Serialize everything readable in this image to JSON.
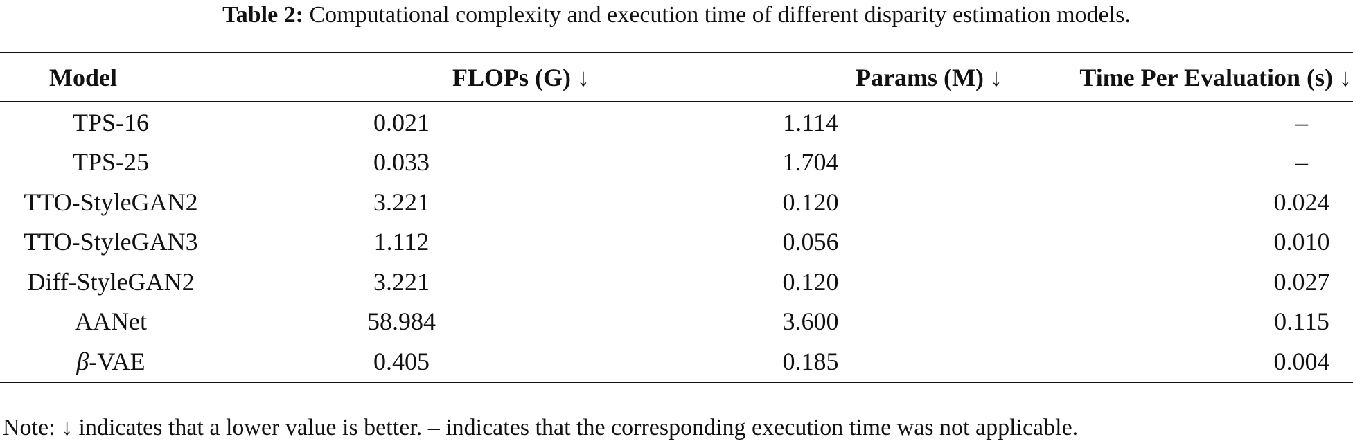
{
  "caption": {
    "label": "Table 2:",
    "text": "Computational complexity and execution time of different disparity estimation models."
  },
  "table": {
    "headers": {
      "model": "Model",
      "flops": "FLOPs (G) ↓",
      "params": "Params (M) ↓",
      "time": "Time Per Evaluation (s) ↓"
    },
    "rows": [
      {
        "model": "TPS-16",
        "flops": "0.021",
        "params": "1.114",
        "time": "–"
      },
      {
        "model": "TPS-25",
        "flops": "0.033",
        "params": "1.704",
        "time": "–"
      },
      {
        "model": "TTO-StyleGAN2",
        "flops": "3.221",
        "params": "0.120",
        "time": "0.024"
      },
      {
        "model": "TTO-StyleGAN3",
        "flops": "1.112",
        "params": "0.056",
        "time": "0.010"
      },
      {
        "model": "Diff-StyleGAN2",
        "flops": "3.221",
        "params": "0.120",
        "time": "0.027"
      },
      {
        "model": "AANet",
        "flops": "58.984",
        "params": "3.600",
        "time": "0.115"
      },
      {
        "model_symbol": "β",
        "model": "-VAE",
        "flops": "0.405",
        "params": "0.185",
        "time": "0.004"
      }
    ]
  },
  "note": "Note: ↓ indicates that a lower value is better. – indicates that the corresponding execution time was not applicable."
}
